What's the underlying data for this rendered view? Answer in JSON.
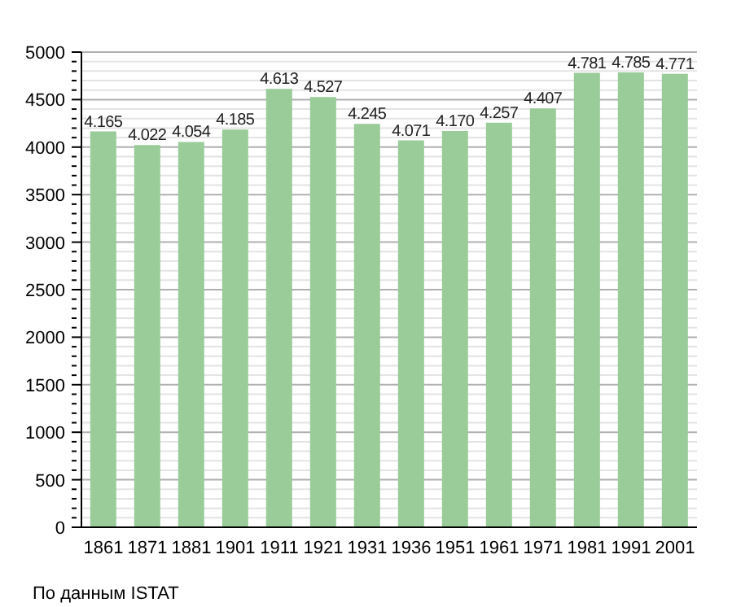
{
  "chart_data": {
    "type": "bar",
    "categories": [
      "1861",
      "1871",
      "1881",
      "1901",
      "1911",
      "1921",
      "1931",
      "1936",
      "1951",
      "1961",
      "1971",
      "1981",
      "1991",
      "2001"
    ],
    "values": [
      4165,
      4022,
      4054,
      4185,
      4613,
      4527,
      4245,
      4071,
      4170,
      4257,
      4407,
      4781,
      4785,
      4771
    ],
    "value_labels": [
      "4.165",
      "4.022",
      "4.054",
      "4.185",
      "4.613",
      "4.527",
      "4.245",
      "4.071",
      "4.170",
      "4.257",
      "4.407",
      "4.781",
      "4.785",
      "4.771"
    ],
    "color": "#99cc99",
    "ylim": [
      0,
      5000
    ],
    "yticks": [
      0,
      {
        "value": 100,
        "label": null
      },
      {
        "value": 200,
        "label": null
      },
      {
        "value": 300,
        "label": null
      },
      {
        "value": 400,
        "label": null
      },
      500,
      {
        "value": 600,
        "label": null
      },
      {
        "value": 700,
        "label": null
      },
      {
        "value": 800,
        "label": null
      },
      {
        "value": 900,
        "label": null
      },
      1000,
      {
        "value": 1100,
        "label": null
      },
      {
        "value": 1200,
        "label": null
      },
      {
        "value": 1300,
        "label": null
      },
      {
        "value": 1400,
        "label": null
      },
      1500,
      {
        "value": 1600,
        "label": null
      },
      {
        "value": 1700,
        "label": null
      },
      {
        "value": 1800,
        "label": null
      },
      {
        "value": 1900,
        "label": null
      },
      2000,
      {
        "value": 2100,
        "label": null
      },
      {
        "value": 2200,
        "label": null
      },
      {
        "value": 2300,
        "label": null
      },
      {
        "value": 2400,
        "label": null
      },
      2500,
      {
        "value": 2600,
        "label": null
      },
      {
        "value": 2700,
        "label": null
      },
      {
        "value": 2800,
        "label": null
      },
      {
        "value": 2900,
        "label": null
      },
      3000,
      {
        "value": 3100,
        "label": null
      },
      {
        "value": 3200,
        "label": null
      },
      {
        "value": 3300,
        "label": null
      },
      {
        "value": 3400,
        "label": null
      },
      3500,
      {
        "value": 3600,
        "label": null
      },
      {
        "value": 3700,
        "label": null
      },
      {
        "value": 3800,
        "label": null
      },
      {
        "value": 3900,
        "label": null
      },
      4000,
      {
        "value": 4100,
        "label": null
      },
      {
        "value": 4200,
        "label": null
      },
      {
        "value": 4300,
        "label": null
      },
      {
        "value": 4400,
        "label": null
      },
      4500,
      {
        "value": 4600,
        "label": null
      },
      {
        "value": 4700,
        "label": null
      },
      {
        "value": 4800,
        "label": null
      },
      {
        "value": 4900,
        "label": null
      },
      5000
    ],
    "grid": "y",
    "annotations": [
      "По данным ISTAT"
    ]
  }
}
